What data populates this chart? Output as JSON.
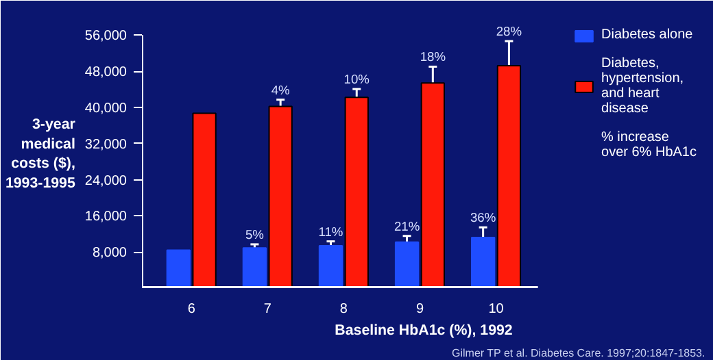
{
  "chart_data": {
    "type": "bar",
    "categories": [
      "6",
      "7",
      "8",
      "9",
      "10"
    ],
    "xlabel": "Baseline HbA1c (%), 1992",
    "ylabel": "3-year\nmedical\ncosts ($),\n1993-1995",
    "ylim": [
      0,
      56000
    ],
    "yticks": [
      {
        "value": 8000,
        "label": "8,000"
      },
      {
        "value": 16000,
        "label": "16,000"
      },
      {
        "value": 24000,
        "label": "24,000"
      },
      {
        "value": 32000,
        "label": "32,000"
      },
      {
        "value": 40000,
        "label": "40,000"
      },
      {
        "value": 48000,
        "label": "48,000"
      },
      {
        "value": 56000,
        "label": "56,000"
      }
    ],
    "series": [
      {
        "name": "Diabetes alone",
        "color": "#1f4dff",
        "values": [
          8400,
          8900,
          9400,
          10200,
          11200
        ],
        "errors": [
          null,
          800,
          950,
          1350,
          2250
        ]
      },
      {
        "name": "Diabetes, hypertension, and heart disease",
        "color": "#ff1a0a",
        "values": [
          38700,
          40200,
          42200,
          45400,
          49200
        ],
        "errors": [
          null,
          1500,
          1850,
          3600,
          5450
        ]
      }
    ],
    "annotations": [
      {
        "text": "5%",
        "x": "7",
        "y": 8900
      },
      {
        "text": "11%",
        "x": "8",
        "y": 9400
      },
      {
        "text": "21%",
        "x": "9",
        "y": 10200
      },
      {
        "text": "36%",
        "x": "10",
        "y": 11200
      },
      {
        "text": "4%",
        "x": "7",
        "y": 40200
      },
      {
        "text": "10%",
        "x": "8",
        "y": 42200
      },
      {
        "text": "18%",
        "x": "9",
        "y": 45400
      },
      {
        "text": "28%",
        "x": "10",
        "y": 49200
      },
      "% increase over 6% HbA1c",
      "Gilmer TP et al. Diabetes Care. 1997;20:1847-1853."
    ],
    "legend": "right",
    "grid": false
  }
}
